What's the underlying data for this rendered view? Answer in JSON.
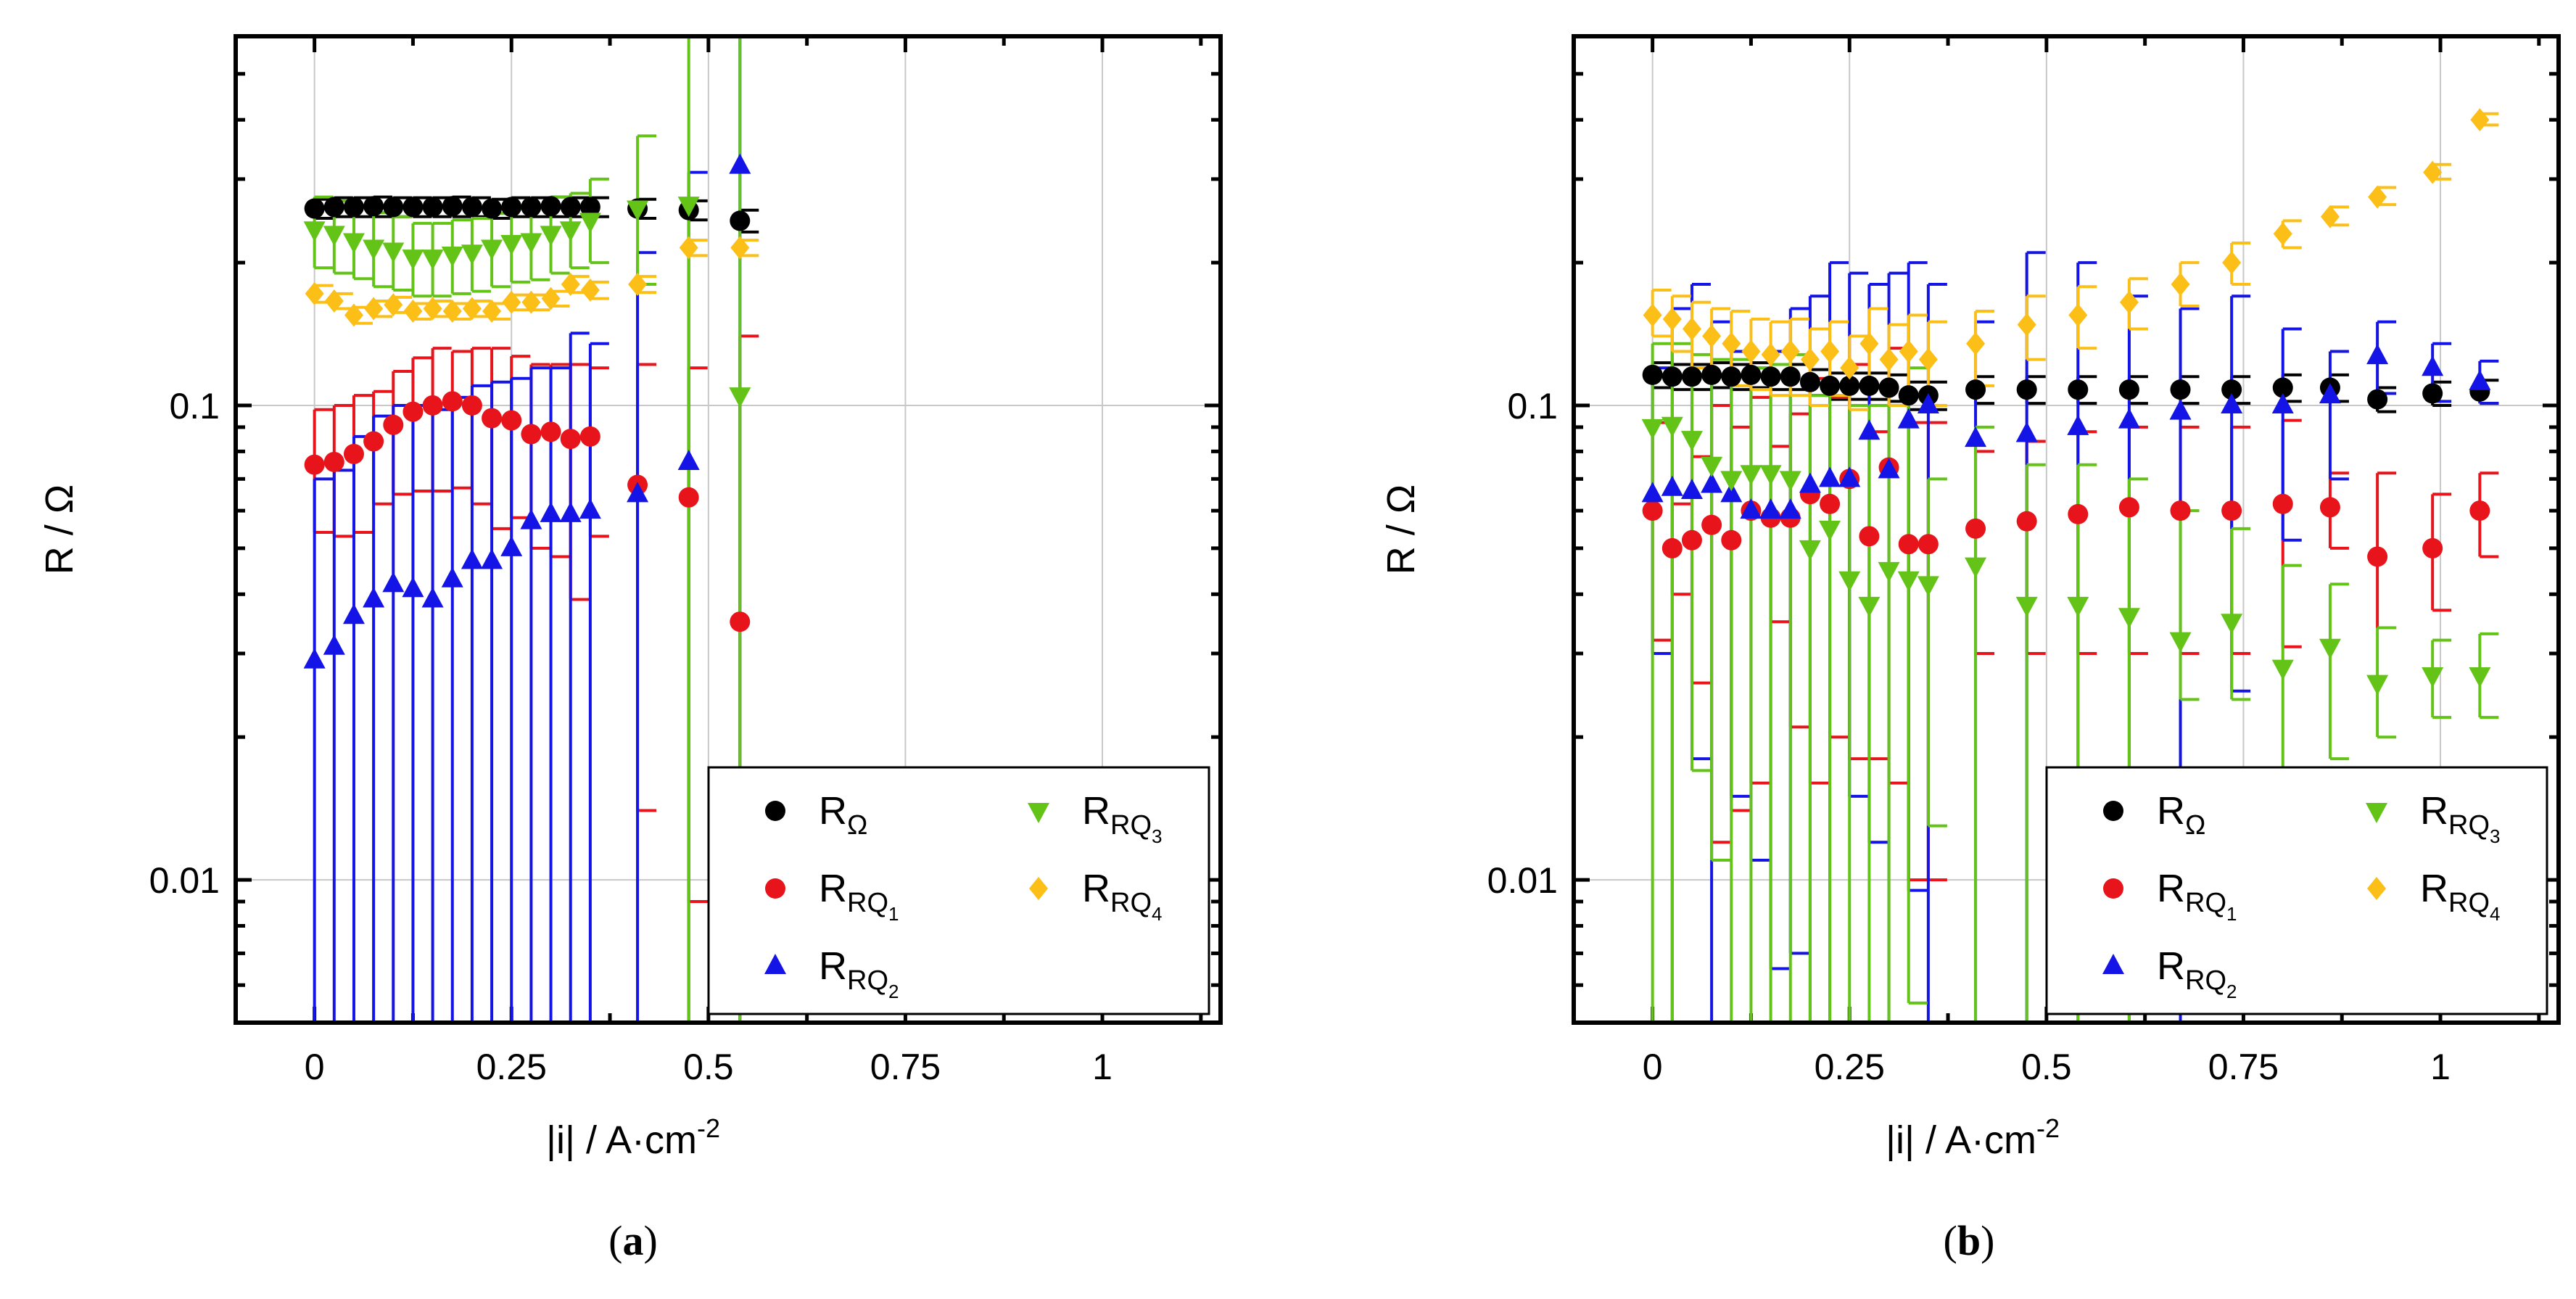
{
  "chart_data": [
    {
      "panel": "a",
      "type": "scatter",
      "caption": "(a)",
      "xlabel": "|i| / A·cm-2",
      "ylabel": "R / Ω",
      "xlim": [
        -0.1,
        1.15
      ],
      "ylim": [
        0.005,
        0.6
      ],
      "yscale": "log",
      "grid": true,
      "xticks": [
        0,
        0.25,
        0.5,
        0.75,
        1
      ],
      "xtick_labels": [
        "0",
        "0.25",
        "0.5",
        "0.75",
        "1"
      ],
      "yticks": [
        0.01,
        0.1
      ],
      "ytick_labels": [
        "0.01",
        "0.1"
      ],
      "legend_position": "bottom-right",
      "x": [
        0,
        0.025,
        0.05,
        0.075,
        0.1,
        0.125,
        0.15,
        0.175,
        0.2,
        0.225,
        0.25,
        0.275,
        0.3,
        0.325,
        0.35,
        0.41,
        0.475,
        0.54
      ],
      "series": [
        {
          "name": "R_Ω",
          "label_main": "R",
          "label_sub": "Ω",
          "label_subsub": "",
          "marker": "circle",
          "color": "#000000",
          "values": [
            0.26,
            0.262,
            0.262,
            0.263,
            0.262,
            0.262,
            0.262,
            0.263,
            0.262,
            0.26,
            0.262,
            0.262,
            0.263,
            0.262,
            0.262,
            0.26,
            0.258,
            0.245
          ],
          "err_low": [
            0.248,
            0.25,
            0.25,
            0.25,
            0.25,
            0.25,
            0.25,
            0.25,
            0.25,
            0.248,
            0.25,
            0.25,
            0.25,
            0.25,
            0.25,
            0.248,
            0.246,
            0.232
          ],
          "err_high": [
            0.272,
            0.274,
            0.274,
            0.275,
            0.274,
            0.274,
            0.274,
            0.275,
            0.274,
            0.272,
            0.274,
            0.274,
            0.275,
            0.274,
            0.274,
            0.272,
            0.27,
            0.258
          ]
        },
        {
          "name": "R_RQ1",
          "label_main": "R",
          "label_sub": "RQ",
          "label_subsub": "1",
          "marker": "circle",
          "color": "#e8141b",
          "values": [
            0.075,
            0.076,
            0.079,
            0.084,
            0.091,
            0.097,
            0.1,
            0.102,
            0.1,
            0.094,
            0.093,
            0.087,
            0.088,
            0.085,
            0.086,
            0.068,
            0.064,
            0.035
          ],
          "err_low": [
            0.054,
            0.053,
            0.054,
            0.062,
            0.065,
            0.066,
            0.066,
            0.067,
            0.062,
            0.055,
            0.058,
            0.05,
            0.048,
            0.039,
            0.053,
            0.014,
            0.009,
            null
          ],
          "err_high": [
            0.098,
            0.1,
            0.105,
            0.107,
            0.118,
            0.126,
            0.132,
            0.13,
            0.132,
            0.132,
            0.127,
            0.122,
            0.122,
            0.122,
            0.12,
            0.122,
            0.12,
            0.14
          ]
        },
        {
          "name": "R_RQ2",
          "label_main": "R",
          "label_sub": "RQ",
          "label_subsub": "2",
          "marker": "triangle-up",
          "color": "#1414e6",
          "values": [
            0.029,
            0.031,
            0.036,
            0.039,
            0.042,
            0.041,
            0.039,
            0.043,
            0.047,
            0.047,
            0.05,
            0.057,
            0.059,
            0.059,
            0.06,
            0.065,
            0.076,
            0.32
          ],
          "err_low": [
            null,
            null,
            null,
            null,
            null,
            null,
            null,
            null,
            null,
            null,
            null,
            null,
            null,
            null,
            null,
            null,
            null,
            null
          ],
          "err_high": [
            0.07,
            0.073,
            0.086,
            0.095,
            0.1,
            0.1,
            0.098,
            0.104,
            0.11,
            0.112,
            0.114,
            0.12,
            0.12,
            0.142,
            0.135,
            0.21,
            0.31,
            null
          ]
        },
        {
          "name": "R_RQ3",
          "label_main": "R",
          "label_sub": "RQ",
          "label_subsub": "3",
          "marker": "triangle-down",
          "color": "#63c316",
          "values": [
            0.235,
            0.23,
            0.222,
            0.215,
            0.212,
            0.205,
            0.205,
            0.208,
            0.21,
            0.215,
            0.22,
            0.222,
            0.23,
            0.235,
            0.245,
            0.26,
            0.265,
            0.105
          ],
          "err_low": [
            0.195,
            0.19,
            0.185,
            0.178,
            0.175,
            0.17,
            0.17,
            0.172,
            0.174,
            0.178,
            0.182,
            0.184,
            0.19,
            0.195,
            0.2,
            0.18,
            null,
            null
          ],
          "err_high": [
            0.275,
            0.27,
            0.262,
            0.255,
            0.25,
            0.242,
            0.242,
            0.246,
            0.248,
            0.254,
            0.26,
            0.262,
            0.275,
            0.28,
            0.3,
            0.37,
            null,
            null
          ]
        },
        {
          "name": "R_RQ4",
          "label_main": "R",
          "label_sub": "RQ",
          "label_subsub": "4",
          "marker": "diamond",
          "color": "#fbbf18",
          "values": [
            0.172,
            0.166,
            0.155,
            0.16,
            0.163,
            0.158,
            0.16,
            0.158,
            0.16,
            0.158,
            0.165,
            0.165,
            0.168,
            0.18,
            0.175,
            0.18,
            0.215,
            0.215
          ],
          "err_low": [
            0.165,
            0.16,
            0.149,
            0.154,
            0.157,
            0.152,
            0.154,
            0.152,
            0.154,
            0.152,
            0.159,
            0.159,
            0.162,
            0.173,
            0.168,
            0.173,
            0.207,
            0.207
          ],
          "err_high": [
            0.179,
            0.172,
            0.161,
            0.166,
            0.169,
            0.164,
            0.166,
            0.164,
            0.166,
            0.164,
            0.171,
            0.171,
            0.174,
            0.187,
            0.182,
            0.187,
            0.223,
            0.223
          ]
        }
      ]
    },
    {
      "panel": "b",
      "type": "scatter",
      "caption": "(b)",
      "xlabel": "|i| / A·cm-2",
      "ylabel": "R / Ω",
      "xlim": [
        -0.1,
        1.15
      ],
      "ylim": [
        0.005,
        0.6
      ],
      "yscale": "log",
      "grid": true,
      "xticks": [
        0,
        0.25,
        0.5,
        0.75,
        1
      ],
      "xtick_labels": [
        "0",
        "0.25",
        "0.5",
        "0.75",
        "1"
      ],
      "yticks": [
        0.01,
        0.1
      ],
      "ytick_labels": [
        "0.01",
        "0.1"
      ],
      "legend_position": "bottom-right",
      "x": [
        0,
        0.025,
        0.05,
        0.075,
        0.1,
        0.125,
        0.15,
        0.175,
        0.2,
        0.225,
        0.25,
        0.275,
        0.3,
        0.325,
        0.35,
        0.41,
        0.475,
        0.54,
        0.605,
        0.67,
        0.735,
        0.8,
        0.86,
        0.92,
        0.99,
        1.05
      ],
      "series": [
        {
          "name": "R_Ω",
          "label_main": "R",
          "label_sub": "Ω",
          "label_subsub": "",
          "marker": "circle",
          "color": "#000000",
          "values": [
            0.116,
            0.115,
            0.115,
            0.116,
            0.115,
            0.116,
            0.115,
            0.115,
            0.112,
            0.11,
            0.11,
            0.11,
            0.109,
            0.105,
            0.105,
            0.108,
            0.108,
            0.108,
            0.108,
            0.108,
            0.108,
            0.109,
            0.109,
            0.103,
            0.106,
            0.107
          ],
          "err_low": [
            0.109,
            0.108,
            0.108,
            0.109,
            0.108,
            0.109,
            0.108,
            0.108,
            0.105,
            0.103,
            0.103,
            0.103,
            0.102,
            0.098,
            0.098,
            0.101,
            0.101,
            0.101,
            0.101,
            0.101,
            0.101,
            0.102,
            0.102,
            0.097,
            0.1,
            0.101
          ],
          "err_high": [
            0.123,
            0.122,
            0.122,
            0.123,
            0.122,
            0.123,
            0.122,
            0.122,
            0.119,
            0.117,
            0.117,
            0.117,
            0.116,
            0.112,
            0.112,
            0.115,
            0.115,
            0.115,
            0.115,
            0.115,
            0.115,
            0.116,
            0.116,
            0.109,
            0.112,
            0.113
          ]
        },
        {
          "name": "R_RQ1",
          "label_main": "R",
          "label_sub": "RQ",
          "label_subsub": "1",
          "marker": "circle",
          "color": "#e8141b",
          "values": [
            0.06,
            0.05,
            0.052,
            0.056,
            0.052,
            0.06,
            0.058,
            0.058,
            0.065,
            0.062,
            0.07,
            0.053,
            0.074,
            0.051,
            0.051,
            0.055,
            0.057,
            0.059,
            0.061,
            0.06,
            0.06,
            0.062,
            0.061,
            0.048,
            0.05,
            0.06
          ],
          "err_low": [
            0.032,
            0.04,
            0.026,
            0.012,
            0.014,
            0.016,
            0.035,
            0.021,
            0.016,
            0.02,
            0.018,
            0.018,
            0.016,
            0.01,
            0.01,
            0.03,
            0.03,
            0.03,
            0.03,
            0.03,
            0.03,
            0.031,
            0.05,
            0.034,
            0.037,
            0.048
          ],
          "err_high": [
            0.092,
            0.062,
            0.078,
            0.1,
            0.09,
            0.104,
            0.082,
            0.096,
            0.114,
            0.104,
            0.122,
            0.088,
            0.132,
            0.092,
            0.092,
            0.08,
            0.084,
            0.088,
            0.09,
            0.09,
            0.09,
            0.093,
            0.072,
            0.072,
            0.065,
            0.072
          ]
        },
        {
          "name": "R_RQ2",
          "label_main": "R",
          "label_sub": "RQ",
          "label_subsub": "2",
          "marker": "triangle-up",
          "color": "#1414e6",
          "values": [
            0.065,
            0.067,
            0.066,
            0.068,
            0.065,
            0.06,
            0.06,
            0.06,
            0.068,
            0.07,
            0.07,
            0.088,
            0.073,
            0.093,
            0.1,
            0.085,
            0.087,
            0.09,
            0.093,
            0.097,
            0.1,
            0.1,
            0.105,
            0.127,
            0.12,
            0.112
          ],
          "err_low": [
            0.03,
            null,
            0.018,
            null,
            0.015,
            0.011,
            0.0065,
            0.007,
            null,
            null,
            0.015,
            0.012,
            null,
            0.0095,
            null,
            null,
            null,
            null,
            null,
            null,
            0.025,
            0.052,
            0.07,
            0.106,
            0.102,
            0.101
          ],
          "err_high": [
            0.12,
            0.16,
            0.18,
            0.15,
            0.13,
            0.12,
            0.13,
            0.16,
            0.17,
            0.2,
            0.19,
            0.18,
            0.19,
            0.2,
            0.18,
            0.15,
            0.21,
            0.2,
            0.17,
            0.16,
            0.17,
            0.145,
            0.13,
            0.15,
            0.135,
            0.124
          ]
        },
        {
          "name": "R_RQ3",
          "label_main": "R",
          "label_sub": "RQ",
          "label_subsub": "3",
          "marker": "triangle-down",
          "color": "#63c316",
          "values": [
            0.09,
            0.091,
            0.085,
            0.075,
            0.07,
            0.072,
            0.072,
            0.07,
            0.05,
            0.055,
            0.043,
            0.038,
            0.045,
            0.043,
            0.042,
            0.046,
            0.038,
            0.038,
            0.036,
            0.032,
            0.035,
            0.028,
            0.031,
            0.026,
            0.027,
            0.027
          ],
          "err_low": [
            null,
            null,
            0.017,
            0.011,
            null,
            null,
            null,
            null,
            null,
            null,
            null,
            null,
            null,
            0.0055,
            0.013,
            null,
            null,
            null,
            null,
            0.024,
            0.024,
            0.017,
            0.018,
            0.02,
            0.022,
            0.022
          ],
          "err_high": [
            0.135,
            0.135,
            0.128,
            0.125,
            0.125,
            0.12,
            0.122,
            0.128,
            0.105,
            0.105,
            0.1,
            0.1,
            0.1,
            0.12,
            0.07,
            0.09,
            0.075,
            0.075,
            0.07,
            0.06,
            0.055,
            0.046,
            0.042,
            0.034,
            0.032,
            0.033
          ]
        },
        {
          "name": "R_RQ4",
          "label_main": "R",
          "label_sub": "RQ",
          "label_subsub": "4",
          "marker": "diamond",
          "color": "#fbbf18",
          "values": [
            0.155,
            0.152,
            0.145,
            0.14,
            0.135,
            0.13,
            0.128,
            0.13,
            0.125,
            0.13,
            0.12,
            0.135,
            0.125,
            0.13,
            0.125,
            0.135,
            0.148,
            0.155,
            0.165,
            0.18,
            0.2,
            0.23,
            0.25,
            0.275,
            0.31,
            0.4
          ],
          "err_low": [
            0.14,
            0.13,
            0.12,
            0.115,
            0.11,
            0.108,
            0.105,
            0.105,
            0.1,
            0.105,
            0.098,
            0.11,
            0.1,
            0.105,
            0.1,
            0.11,
            0.125,
            0.132,
            0.145,
            0.162,
            0.18,
            0.215,
            0.24,
            0.265,
            0.3,
            0.39
          ],
          "err_high": [
            0.175,
            0.17,
            0.165,
            0.16,
            0.158,
            0.152,
            0.15,
            0.152,
            0.145,
            0.15,
            0.14,
            0.16,
            0.148,
            0.155,
            0.15,
            0.158,
            0.17,
            0.178,
            0.185,
            0.2,
            0.22,
            0.245,
            0.262,
            0.288,
            0.322,
            0.412
          ]
        }
      ]
    }
  ]
}
